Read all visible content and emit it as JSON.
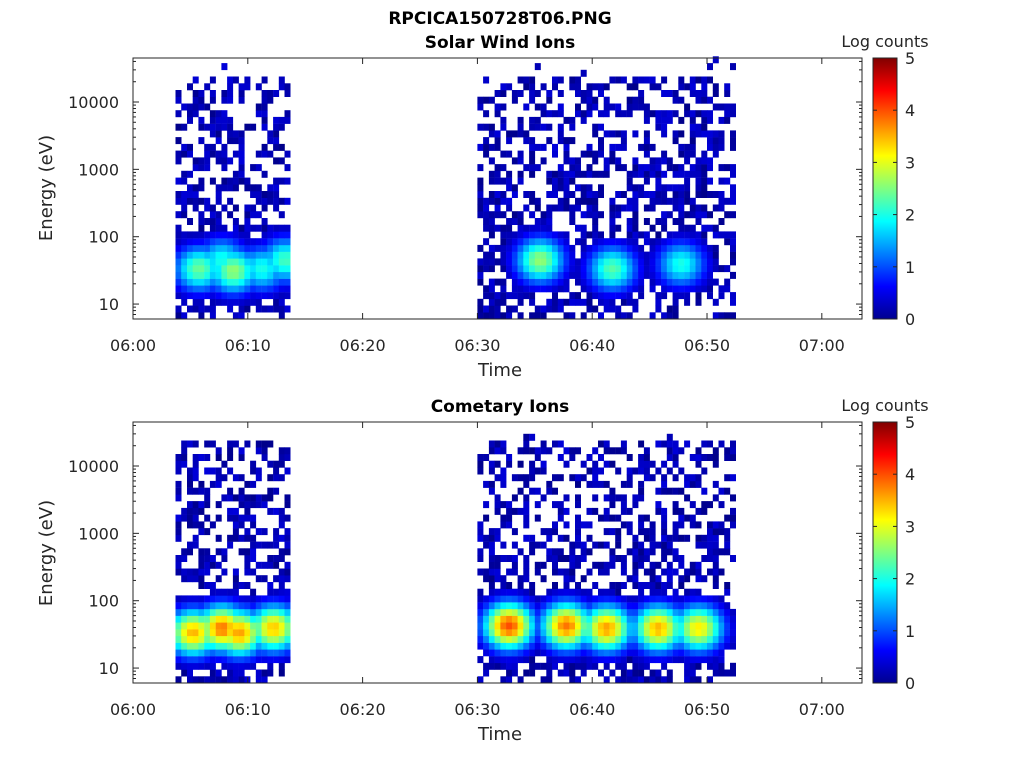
{
  "figure": {
    "title": "RPCICA150728T06.PNG"
  },
  "chart_data": [
    {
      "type": "heatmap",
      "title": "Solar Wind Ions",
      "xlabel": "Time",
      "ylabel": "Energy (eV)",
      "xticks": [
        "06:00",
        "06:10",
        "06:20",
        "06:30",
        "06:40",
        "06:50",
        "07:00"
      ],
      "xlim_minutes": [
        0,
        63.5
      ],
      "yscale": "log",
      "ylim": [
        6,
        45000
      ],
      "yticks": [
        "10",
        "100",
        "1000",
        "10000"
      ],
      "colorbar": {
        "label": "Log counts",
        "range": [
          0,
          5
        ],
        "ticks": [
          "0",
          "1",
          "2",
          "3",
          "4",
          "5"
        ],
        "colormap": "jet"
      },
      "data_time_ranges_minutes": [
        [
          3.7,
          13.5
        ],
        [
          30.0,
          52.5
        ]
      ],
      "cells": [
        {
          "t": 5.5,
          "E": 30,
          "v": 2.4
        },
        {
          "t": 7.5,
          "E": 40,
          "v": 2.0
        },
        {
          "t": 8.5,
          "E": 28,
          "v": 2.6
        },
        {
          "t": 11.0,
          "E": 30,
          "v": 2.0
        },
        {
          "t": 13.0,
          "E": 40,
          "v": 2.2
        },
        {
          "t": 35.2,
          "E": 40,
          "v": 2.6
        },
        {
          "t": 41.5,
          "E": 30,
          "v": 2.3
        },
        {
          "t": 47.5,
          "E": 35,
          "v": 2.0
        }
      ]
    },
    {
      "type": "heatmap",
      "title": "Cometary Ions",
      "xlabel": "Time",
      "ylabel": "Energy (eV)",
      "xticks": [
        "06:00",
        "06:10",
        "06:20",
        "06:30",
        "06:40",
        "06:50",
        "07:00"
      ],
      "xlim_minutes": [
        0,
        63.5
      ],
      "yscale": "log",
      "ylim": [
        6,
        45000
      ],
      "yticks": [
        "10",
        "100",
        "1000",
        "10000"
      ],
      "colorbar": {
        "label": "Log counts",
        "range": [
          0,
          5
        ],
        "ticks": [
          "0",
          "1",
          "2",
          "3",
          "4",
          "5"
        ],
        "colormap": "jet"
      },
      "data_time_ranges_minutes": [
        [
          3.7,
          13.5
        ],
        [
          30.0,
          52.5
        ]
      ],
      "cells": [
        {
          "t": 5.0,
          "E": 30,
          "v": 3.5
        },
        {
          "t": 7.5,
          "E": 35,
          "v": 3.8
        },
        {
          "t": 9.0,
          "E": 30,
          "v": 3.6
        },
        {
          "t": 12.0,
          "E": 35,
          "v": 3.4
        },
        {
          "t": 32.5,
          "E": 38,
          "v": 4.0
        },
        {
          "t": 37.5,
          "E": 38,
          "v": 3.8
        },
        {
          "t": 41.0,
          "E": 35,
          "v": 3.6
        },
        {
          "t": 45.5,
          "E": 35,
          "v": 3.5
        },
        {
          "t": 49.0,
          "E": 35,
          "v": 3.2
        }
      ]
    }
  ]
}
